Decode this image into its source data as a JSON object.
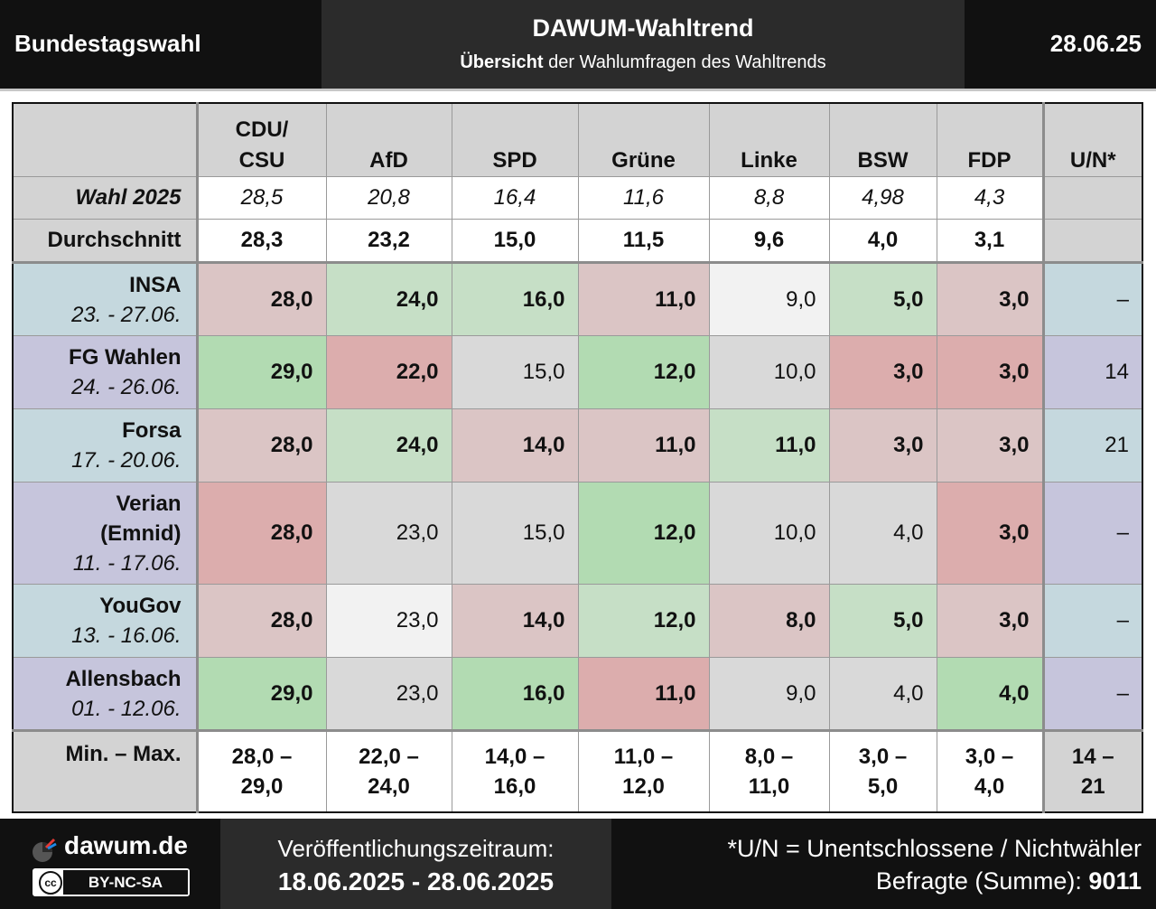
{
  "header": {
    "left": "Bundestagswahl",
    "title": "DAWUM-Wahltrend",
    "subtitle_bold": "Übersicht",
    "subtitle_rest": " der Wahlumfragen des Wahltrends",
    "date": "28.06.25"
  },
  "table": {
    "parties": [
      {
        "line1": "CDU/",
        "line2": "CSU"
      },
      {
        "line1": "",
        "line2": "AfD"
      },
      {
        "line1": "",
        "line2": "SPD"
      },
      {
        "line1": "",
        "line2": "Grüne"
      },
      {
        "line1": "",
        "line2": "Linke"
      },
      {
        "line1": "",
        "line2": "BSW"
      },
      {
        "line1": "",
        "line2": "FDP"
      },
      {
        "line1": "",
        "line2": "U/N*"
      }
    ],
    "wahl_label": "Wahl 2025",
    "wahl": [
      "28,5",
      "20,8",
      "16,4",
      "11,6",
      "8,8",
      "4,98",
      "4,3",
      ""
    ],
    "avg_label": "Durchschnitt",
    "avg": [
      "28,3",
      "23,2",
      "15,0",
      "11,5",
      "9,6",
      "4,0",
      "3,1",
      ""
    ],
    "institutes": [
      {
        "name": "INSA",
        "name2": "",
        "dates": "23. - 27.06.",
        "values": [
          "28,0",
          "24,0",
          "16,0",
          "11,0",
          "9,0",
          "5,0",
          "3,0",
          "–"
        ]
      },
      {
        "name": "FG Wahlen",
        "name2": "",
        "dates": "24. - 26.06.",
        "values": [
          "29,0",
          "22,0",
          "15,0",
          "12,0",
          "10,0",
          "3,0",
          "3,0",
          "14"
        ]
      },
      {
        "name": "Forsa",
        "name2": "",
        "dates": "17. - 20.06.",
        "values": [
          "28,0",
          "24,0",
          "14,0",
          "11,0",
          "11,0",
          "3,0",
          "3,0",
          "21"
        ]
      },
      {
        "name": "Verian",
        "name2": "(Emnid)",
        "dates": "11. - 17.06.",
        "values": [
          "28,0",
          "23,0",
          "15,0",
          "12,0",
          "10,0",
          "4,0",
          "3,0",
          "–"
        ]
      },
      {
        "name": "YouGov",
        "name2": "",
        "dates": "13. - 16.06.",
        "values": [
          "28,0",
          "23,0",
          "14,0",
          "12,0",
          "8,0",
          "5,0",
          "3,0",
          "–"
        ]
      },
      {
        "name": "Allensbach",
        "name2": "",
        "dates": "01. - 12.06.",
        "values": [
          "29,0",
          "23,0",
          "16,0",
          "11,0",
          "9,0",
          "4,0",
          "4,0",
          "–"
        ]
      }
    ],
    "minmax_label": "Min. – Max.",
    "minmax": [
      {
        "a": "28,0 –",
        "b": "29,0"
      },
      {
        "a": "22,0 –",
        "b": "24,0"
      },
      {
        "a": "14,0 –",
        "b": "16,0"
      },
      {
        "a": "11,0 –",
        "b": "12,0"
      },
      {
        "a": "8,0 –",
        "b": "11,0"
      },
      {
        "a": "3,0 –",
        "b": "5,0"
      },
      {
        "a": "3,0 –",
        "b": "4,0"
      },
      {
        "a": "14 –",
        "b": "21"
      }
    ]
  },
  "colors": {
    "green_strong": "#b2dbb2",
    "green_light": "#c6dfc6",
    "red_strong": "#dcadad",
    "red_light": "#dbc5c5",
    "neutral": "#d9d9d9",
    "white_cell": "#f2f2f2",
    "row_blue": "#c5d8de",
    "row_purple": "#c6c5dc"
  },
  "footer": {
    "site": "dawum.de",
    "license": "BY-NC-SA",
    "license_icon": "cc",
    "period_label": "Veröffentlichungszeitraum:",
    "period": "18.06.2025 - 28.06.2025",
    "note": "*U/N = Unentschlossene / Nichtwähler",
    "respondents_label": "Befragte (Summe): ",
    "respondents": "9011"
  }
}
